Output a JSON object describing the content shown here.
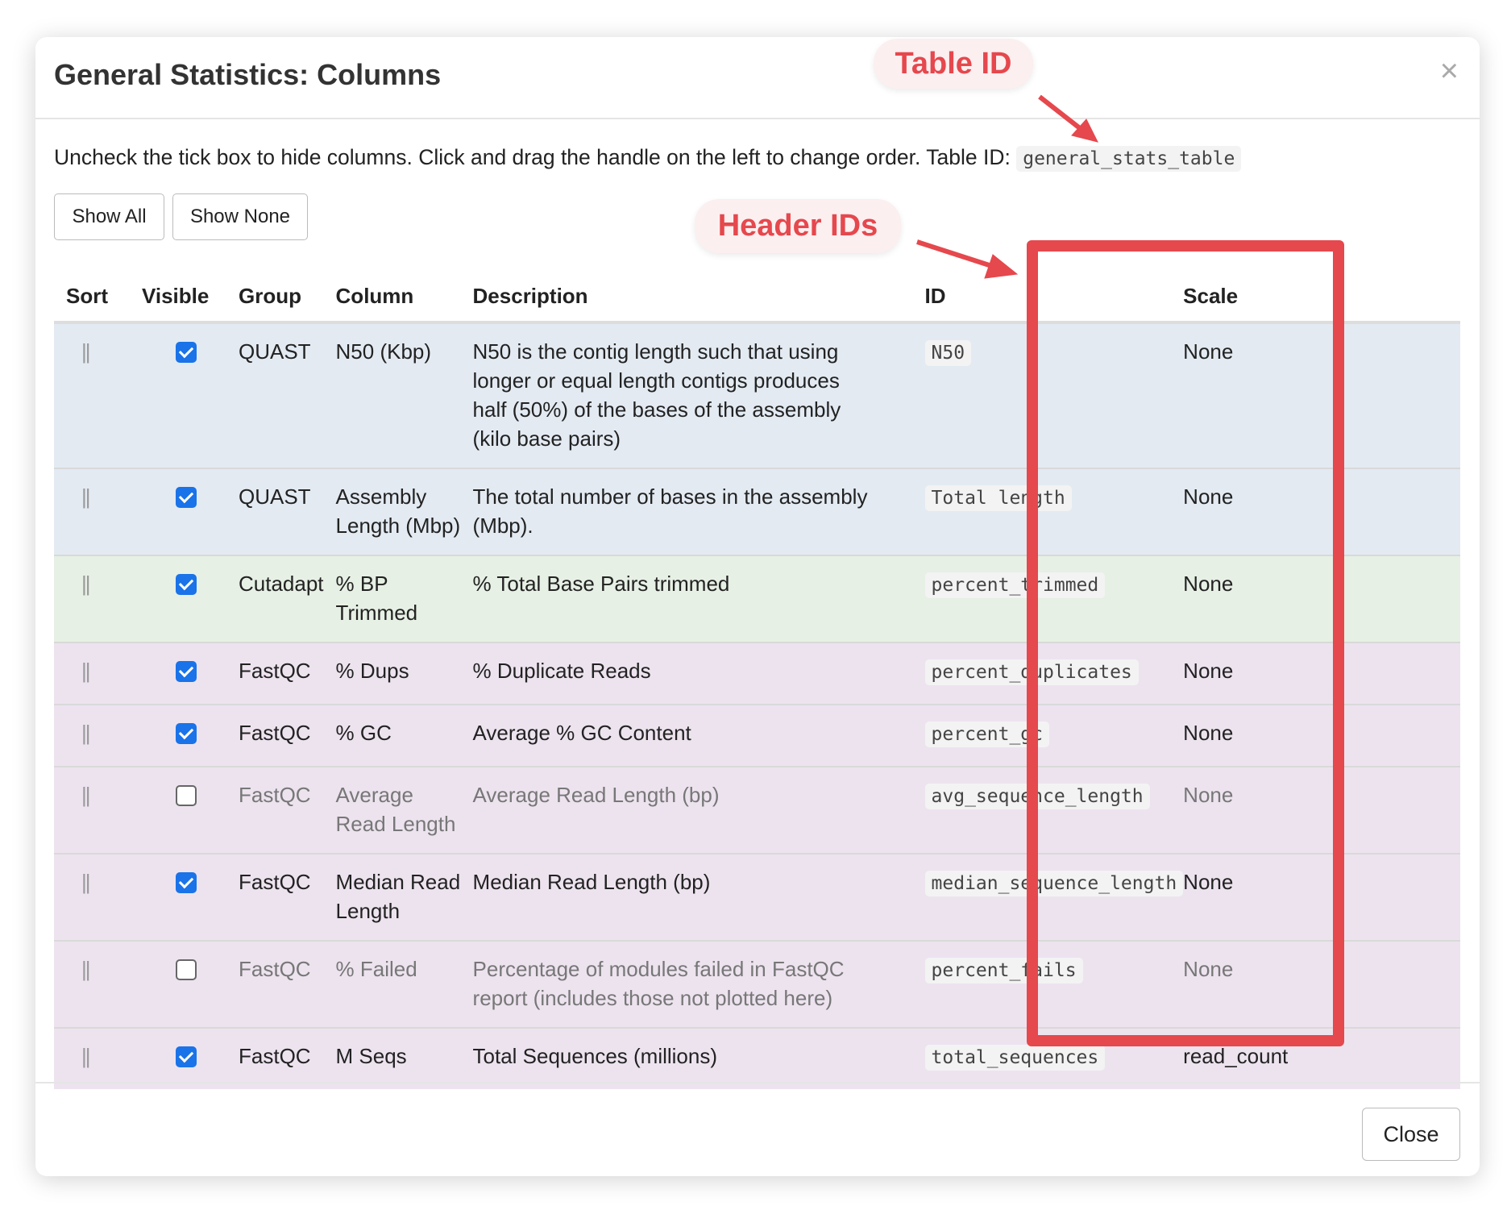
{
  "modal": {
    "title": "General Statistics: Columns",
    "close_x": "×",
    "intro": "Uncheck the tick box to hide columns. Click and drag the handle on the left to change order. Table ID:",
    "table_id": "general_stats_table",
    "show_all": "Show All",
    "show_none": "Show None",
    "close": "Close"
  },
  "annotations": {
    "table_id": "Table ID",
    "header_ids": "Header IDs",
    "color": "#e5484d"
  },
  "table": {
    "headers": [
      "Sort",
      "Visible",
      "Group",
      "Column",
      "Description",
      "ID",
      "Scale"
    ],
    "handle_glyph": "||",
    "rows": [
      {
        "group": "QUAST",
        "column": "N50 (Kbp)",
        "description": "N50 is the contig length such that using longer or equal length contigs produces half (50%) of the bases of the assembly (kilo base pairs)",
        "id": "N50",
        "scale": "None",
        "visible": true,
        "color": "blue"
      },
      {
        "group": "QUAST",
        "column": "Assembly Length (Mbp)",
        "description": "The total number of bases in the assembly (Mbp).",
        "id": "Total length",
        "scale": "None",
        "visible": true,
        "color": "blue"
      },
      {
        "group": "Cutadapt",
        "column": "% BP Trimmed",
        "description": "% Total Base Pairs trimmed",
        "id": "percent_trimmed",
        "scale": "None",
        "visible": true,
        "color": "green"
      },
      {
        "group": "FastQC",
        "column": "% Dups",
        "description": "% Duplicate Reads",
        "id": "percent_duplicates",
        "scale": "None",
        "visible": true,
        "color": "purple"
      },
      {
        "group": "FastQC",
        "column": "% GC",
        "description": "Average % GC Content",
        "id": "percent_gc",
        "scale": "None",
        "visible": true,
        "color": "purple"
      },
      {
        "group": "FastQC",
        "column": "Average Read Length",
        "description": "Average Read Length (bp)",
        "id": "avg_sequence_length",
        "scale": "None",
        "visible": false,
        "color": "purple"
      },
      {
        "group": "FastQC",
        "column": "Median Read Length",
        "description": "Median Read Length (bp)",
        "id": "median_sequence_length",
        "scale": "None",
        "visible": true,
        "color": "purple"
      },
      {
        "group": "FastQC",
        "column": "% Failed",
        "description": "Percentage of modules failed in FastQC report (includes those not plotted here)",
        "id": "percent_fails",
        "scale": "None",
        "visible": false,
        "color": "purple"
      },
      {
        "group": "FastQC",
        "column": "M Seqs",
        "description": "Total Sequences (millions)",
        "id": "total_sequences",
        "scale": "read_count",
        "visible": true,
        "color": "purple"
      }
    ]
  }
}
